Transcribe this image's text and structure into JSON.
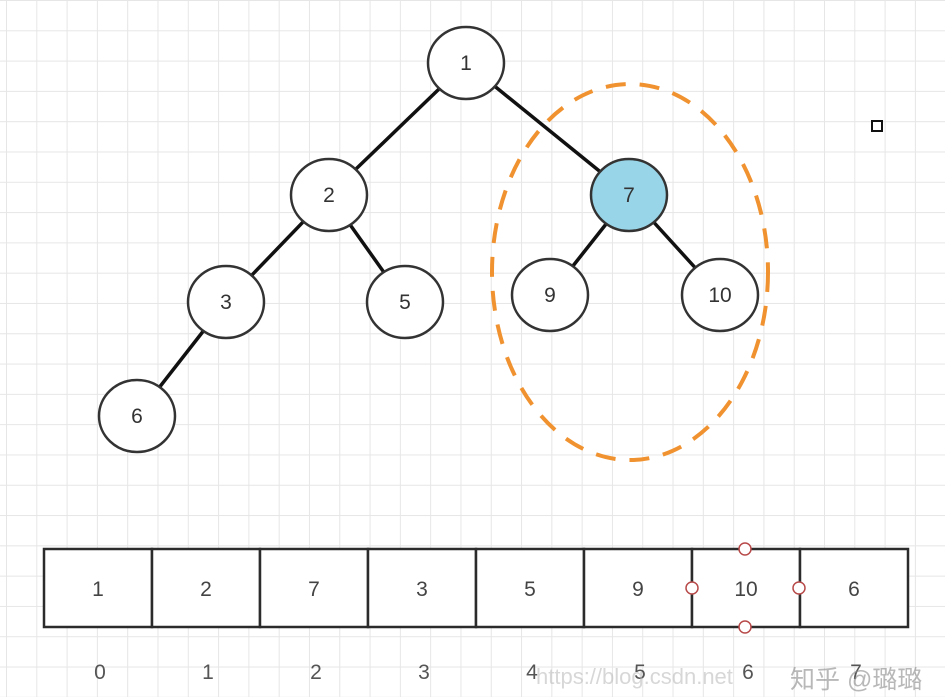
{
  "tree": {
    "nodes": [
      {
        "id": "n1",
        "label": "1",
        "highlight": false
      },
      {
        "id": "n2",
        "label": "2",
        "highlight": false
      },
      {
        "id": "n7",
        "label": "7",
        "highlight": true
      },
      {
        "id": "n3",
        "label": "3",
        "highlight": false
      },
      {
        "id": "n5",
        "label": "5",
        "highlight": false
      },
      {
        "id": "n9",
        "label": "9",
        "highlight": false
      },
      {
        "id": "n10",
        "label": "10",
        "highlight": false
      },
      {
        "id": "n6",
        "label": "6",
        "highlight": false
      }
    ],
    "edges": [
      [
        "n1",
        "n2"
      ],
      [
        "n1",
        "n7"
      ],
      [
        "n2",
        "n3"
      ],
      [
        "n2",
        "n5"
      ],
      [
        "n7",
        "n9"
      ],
      [
        "n7",
        "n10"
      ],
      [
        "n3",
        "n6"
      ]
    ]
  },
  "array": {
    "values": [
      "1",
      "2",
      "7",
      "3",
      "5",
      "9",
      "10",
      "6"
    ],
    "indices": [
      "0",
      "1",
      "2",
      "3",
      "4",
      "5",
      "6",
      "7"
    ]
  },
  "colors": {
    "highlight_fill": "#99d5e8",
    "dashed_outline": "#f0922f",
    "node_fill": "#ffffff"
  },
  "watermark": {
    "url_text": "https://blog.csdn.net",
    "brand_text": "知乎 @璐璐"
  }
}
